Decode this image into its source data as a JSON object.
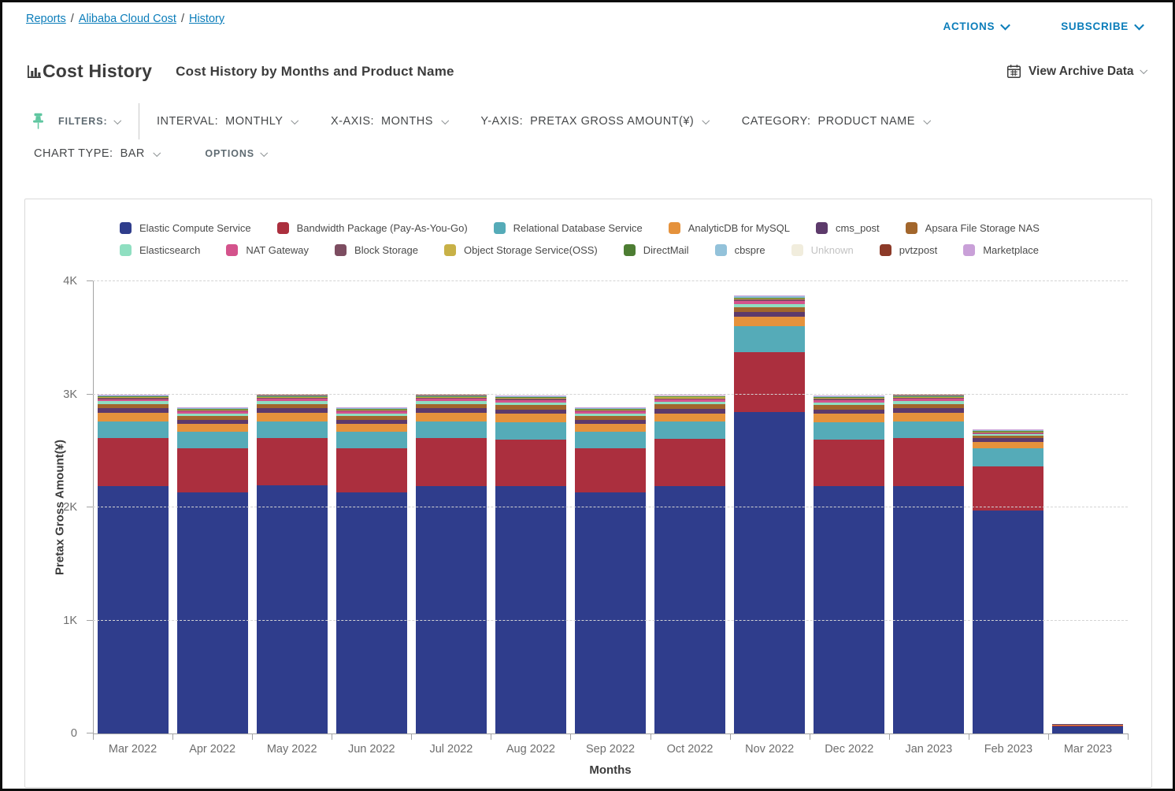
{
  "breadcrumb": {
    "separator": "/",
    "items": [
      {
        "label": "Reports"
      },
      {
        "label": "Alibaba Cloud Cost"
      },
      {
        "label": "History"
      }
    ]
  },
  "topbar": {
    "actions_label": "ACTIONS",
    "subscribe_label": "SUBSCRIBE"
  },
  "header": {
    "title": "Cost History",
    "subtitle": "Cost History by Months and Product Name",
    "archive_label": "View Archive Data"
  },
  "toolbar": {
    "filters_label": "FILTERS:",
    "controls": [
      {
        "label": "INTERVAL:",
        "value": "MONTHLY"
      },
      {
        "label": "X-AXIS:",
        "value": "MONTHS"
      },
      {
        "label": "Y-AXIS:",
        "value": "PRETAX GROSS AMOUNT(¥)"
      },
      {
        "label": "CATEGORY:",
        "value": "PRODUCT NAME"
      }
    ],
    "chart_type_label": "CHART TYPE:",
    "chart_type_value": "BAR",
    "options_label": "OPTIONS"
  },
  "colors": {
    "accent_blue": "#0b7dba",
    "pin_green": "#5fc6a0",
    "grid_gray": "#d4d4d4",
    "axis_gray": "#a3a3a3"
  },
  "chart_data": {
    "type": "bar",
    "stacked": true,
    "title": "Cost History by Months and Product Name",
    "xlabel": "Months",
    "ylabel": "Pretax Gross Amount(¥)",
    "ylim": [
      0,
      4000
    ],
    "grid": "dashed-horizontal",
    "legend_position": "top",
    "yticks": [
      {
        "value": 0,
        "label": "0"
      },
      {
        "value": 1000,
        "label": "1K"
      },
      {
        "value": 2000,
        "label": "2K"
      },
      {
        "value": 3000,
        "label": "3K"
      },
      {
        "value": 4000,
        "label": "4K"
      }
    ],
    "categories": [
      "Mar 2022",
      "Apr 2022",
      "May 2022",
      "Jun 2022",
      "Jul 2022",
      "Aug 2022",
      "Sep 2022",
      "Oct 2022",
      "Nov 2022",
      "Dec 2022",
      "Jan 2023",
      "Feb 2023",
      "Mar 2023"
    ],
    "series": [
      {
        "name": "Elastic Compute Service",
        "color": "#2f3d8c",
        "legend_row": 1,
        "muted": false,
        "values": [
          2190,
          2130,
          2195,
          2130,
          2190,
          2190,
          2130,
          2190,
          2840,
          2190,
          2190,
          1975,
          60
        ]
      },
      {
        "name": "Bandwidth Package (Pay-As-You-Go)",
        "color": "#ab2f3e",
        "legend_row": 1,
        "muted": false,
        "values": [
          420,
          390,
          415,
          390,
          420,
          410,
          390,
          415,
          530,
          410,
          420,
          385,
          12
        ]
      },
      {
        "name": "Relational Database Service",
        "color": "#55abb8",
        "legend_row": 1,
        "muted": false,
        "values": [
          150,
          148,
          152,
          148,
          152,
          152,
          148,
          152,
          235,
          152,
          152,
          160,
          0
        ]
      },
      {
        "name": "AnalyticDB for MySQL",
        "color": "#e5923c",
        "legend_row": 1,
        "muted": false,
        "values": [
          75,
          70,
          75,
          70,
          75,
          75,
          70,
          75,
          80,
          75,
          75,
          60,
          8
        ]
      },
      {
        "name": "cms_post",
        "color": "#5d3a6b",
        "legend_row": 1,
        "muted": false,
        "values": [
          40,
          38,
          40,
          38,
          40,
          40,
          38,
          40,
          42,
          40,
          40,
          35,
          1
        ]
      },
      {
        "name": "Apsara File Storage NAS",
        "color": "#a2662c",
        "legend_row": 1,
        "muted": false,
        "values": [
          38,
          35,
          38,
          35,
          38,
          38,
          35,
          38,
          46,
          38,
          38,
          18,
          1
        ]
      },
      {
        "name": "Elasticsearch",
        "color": "#8fdfc1",
        "legend_row": 2,
        "muted": false,
        "values": [
          25,
          22,
          25,
          22,
          25,
          25,
          22,
          25,
          28,
          25,
          25,
          15,
          1
        ]
      },
      {
        "name": "NAT Gateway",
        "color": "#d4538c",
        "legend_row": 2,
        "muted": false,
        "values": [
          20,
          18,
          20,
          18,
          20,
          20,
          18,
          20,
          24,
          20,
          20,
          10,
          1
        ]
      },
      {
        "name": "Block Storage",
        "color": "#7d4d61",
        "legend_row": 2,
        "muted": false,
        "values": [
          10,
          8,
          10,
          8,
          10,
          10,
          8,
          10,
          12,
          10,
          10,
          6,
          0
        ]
      },
      {
        "name": "Object Storage Service(OSS)",
        "color": "#c8b147",
        "legend_row": 2,
        "muted": false,
        "values": [
          8,
          7,
          8,
          7,
          8,
          8,
          7,
          8,
          10,
          8,
          8,
          5,
          1
        ]
      },
      {
        "name": "DirectMail",
        "color": "#4d7d33",
        "legend_row": 2,
        "muted": false,
        "values": [
          8,
          7,
          8,
          7,
          8,
          8,
          7,
          8,
          10,
          8,
          8,
          8,
          0
        ]
      },
      {
        "name": "cbspre",
        "color": "#93c2da",
        "legend_row": 2,
        "muted": false,
        "values": [
          5,
          4,
          5,
          4,
          5,
          5,
          4,
          5,
          8,
          5,
          5,
          4,
          0
        ]
      },
      {
        "name": "Unknown",
        "color": "#f1eddd",
        "legend_row": 2,
        "muted": true,
        "values": [
          2,
          2,
          2,
          2,
          2,
          2,
          2,
          2,
          3,
          2,
          2,
          2,
          0
        ]
      },
      {
        "name": "pvtzpost",
        "color": "#8c3a28",
        "legend_row": 2,
        "muted": false,
        "values": [
          2,
          2,
          2,
          2,
          2,
          2,
          2,
          2,
          3,
          2,
          2,
          2,
          0
        ]
      },
      {
        "name": "Marketplace",
        "color": "#c9a0d8",
        "legend_row": 2,
        "muted": false,
        "values": [
          4,
          4,
          4,
          4,
          4,
          4,
          4,
          4,
          6,
          4,
          4,
          4,
          0
        ]
      }
    ]
  }
}
